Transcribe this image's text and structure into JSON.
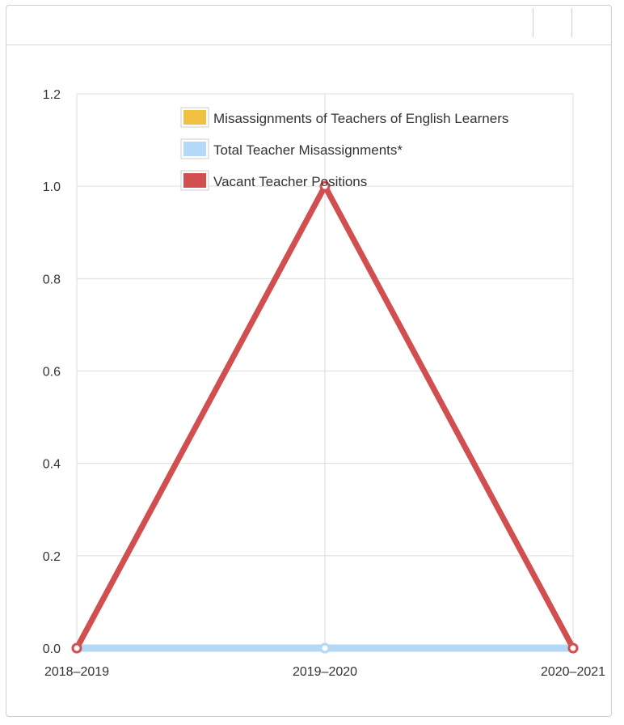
{
  "chart_data": {
    "type": "line",
    "title": "",
    "xlabel": "",
    "ylabel": "",
    "categories": [
      "2018–2019",
      "2019–2020",
      "2020–2021"
    ],
    "ylim": [
      0,
      1.2
    ],
    "yticks": [
      "0.0",
      "0.2",
      "0.4",
      "0.6",
      "0.8",
      "1.0",
      "1.2"
    ],
    "grid": true,
    "legend_position": "top-right",
    "series": [
      {
        "name": "Misassignments of Teachers of English Learners",
        "color": "#f0c040",
        "values": [
          0,
          0,
          0
        ]
      },
      {
        "name": "Total Teacher Misassignments*",
        "color": "#b3d9f7",
        "values": [
          0,
          0,
          0
        ]
      },
      {
        "name": "Vacant Teacher Positions",
        "color": "#d24f4f",
        "values": [
          0,
          1,
          0
        ]
      }
    ]
  }
}
